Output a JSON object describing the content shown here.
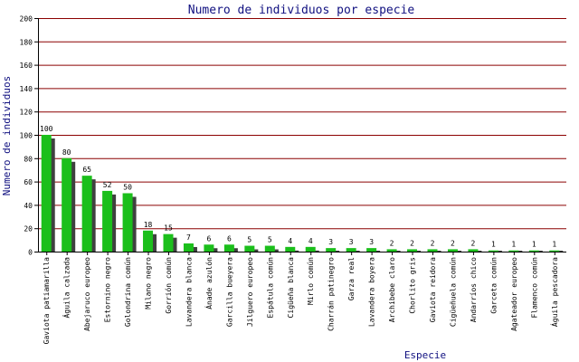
{
  "chart_data": {
    "type": "bar",
    "title": "Numero de individuos por especie",
    "xlabel": "Especie",
    "ylabel": "Numero de individuos",
    "ylim": [
      0,
      200
    ],
    "yticks": [
      0,
      20,
      40,
      60,
      80,
      100,
      120,
      140,
      160,
      180,
      200
    ],
    "grid": true,
    "categories": [
      "Gaviota patiamarilla",
      "Águila calzada",
      "Abejaruco europeo",
      "Estornino negro",
      "Golondrina común",
      "Milano negro",
      "Gorrión común",
      "Lavandera blanca",
      "Ánade azulón",
      "Garcilla bueyera",
      "Jilguero europeo",
      "Espátula común",
      "Cigüeña blanca",
      "Mirlo común",
      "Charrán patinegro",
      "Garza real",
      "Lavandera boyera",
      "Archibebe claro",
      "Chorlito gris",
      "Gaviota reidora",
      "Cigüeñuela común",
      "Andarríos chico",
      "Garceta común",
      "Agateador europeo",
      "Flamenco común",
      "Águila pescadora"
    ],
    "values": [
      100,
      80,
      65,
      52,
      50,
      18,
      15,
      7,
      6,
      6,
      5,
      5,
      4,
      4,
      3,
      3,
      3,
      2,
      2,
      2,
      2,
      2,
      1,
      1,
      1,
      1
    ],
    "colors": {
      "bar": "#1bbf1b",
      "shadow": "#404040",
      "grid": "#8b0000",
      "axis": "#000000",
      "text": "#101080"
    }
  }
}
